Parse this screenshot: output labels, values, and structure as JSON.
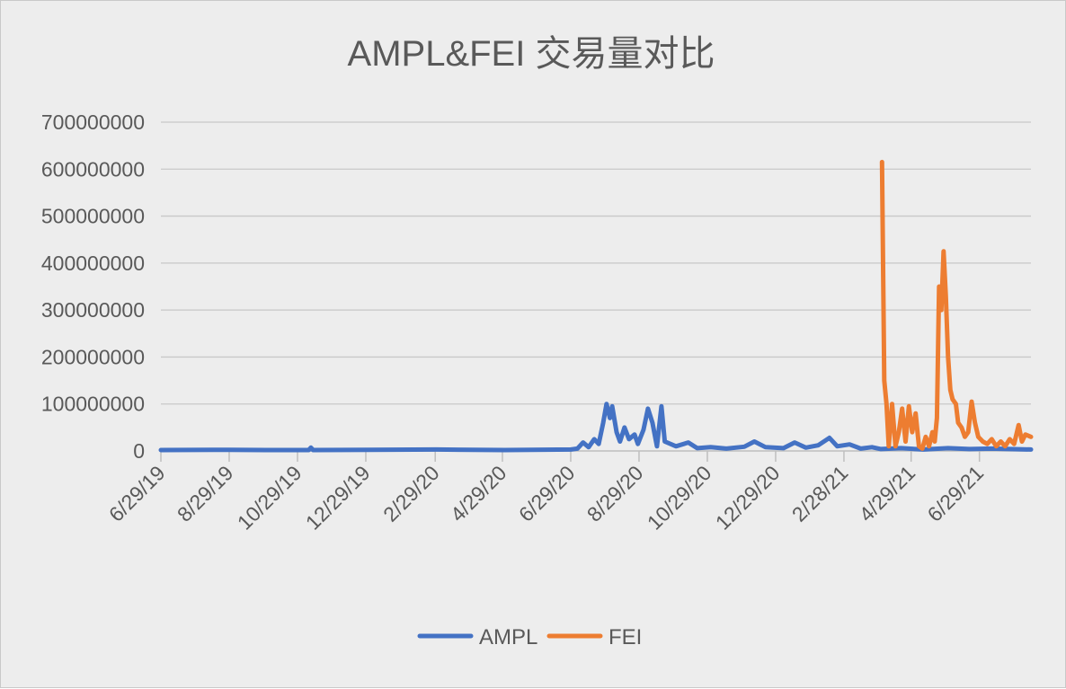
{
  "chart_data": {
    "type": "line",
    "title": "AMPL&FEI 交易量对比",
    "x_tick_labels": [
      "6/29/19",
      "8/29/19",
      "10/29/19",
      "12/29/19",
      "2/29/20",
      "4/29/20",
      "6/29/20",
      "8/29/20",
      "10/29/20",
      "12/29/20",
      "2/28/21",
      "4/29/21",
      "6/29/21"
    ],
    "x_range": [
      "2019-06-29",
      "2021-08-14"
    ],
    "y_ticks": [
      0,
      100000000,
      200000000,
      300000000,
      400000000,
      500000000,
      600000000,
      700000000
    ],
    "y_tick_labels": [
      "0",
      "100000000",
      "200000000",
      "300000000",
      "400000000",
      "500000000",
      "600000000",
      "700000000"
    ],
    "ylim": [
      0,
      700000000
    ],
    "grid": true,
    "legend_position": "bottom",
    "series": [
      {
        "name": "AMPL",
        "color": "#4472c4",
        "points": [
          [
            "2019-06-29",
            2000000
          ],
          [
            "2019-08-15",
            2500000
          ],
          [
            "2019-10-01",
            2000000
          ],
          [
            "2019-11-08",
            2000000
          ],
          [
            "2019-11-10",
            7000000
          ],
          [
            "2019-11-12",
            2000000
          ],
          [
            "2020-01-01",
            2500000
          ],
          [
            "2020-03-01",
            3000000
          ],
          [
            "2020-05-01",
            2000000
          ],
          [
            "2020-06-29",
            3000000
          ],
          [
            "2020-07-05",
            5000000
          ],
          [
            "2020-07-10",
            18000000
          ],
          [
            "2020-07-15",
            8000000
          ],
          [
            "2020-07-20",
            25000000
          ],
          [
            "2020-07-24",
            15000000
          ],
          [
            "2020-07-28",
            60000000
          ],
          [
            "2020-07-31",
            100000000
          ],
          [
            "2020-08-03",
            70000000
          ],
          [
            "2020-08-05",
            95000000
          ],
          [
            "2020-08-09",
            40000000
          ],
          [
            "2020-08-12",
            20000000
          ],
          [
            "2020-08-16",
            50000000
          ],
          [
            "2020-08-20",
            25000000
          ],
          [
            "2020-08-25",
            35000000
          ],
          [
            "2020-08-28",
            15000000
          ],
          [
            "2020-09-02",
            45000000
          ],
          [
            "2020-09-06",
            90000000
          ],
          [
            "2020-09-10",
            60000000
          ],
          [
            "2020-09-14",
            10000000
          ],
          [
            "2020-09-18",
            95000000
          ],
          [
            "2020-09-21",
            20000000
          ],
          [
            "2020-10-01",
            10000000
          ],
          [
            "2020-10-12",
            18000000
          ],
          [
            "2020-10-20",
            6000000
          ],
          [
            "2020-11-01",
            8000000
          ],
          [
            "2020-11-15",
            5000000
          ],
          [
            "2020-12-01",
            9000000
          ],
          [
            "2020-12-10",
            20000000
          ],
          [
            "2020-12-20",
            8000000
          ],
          [
            "2021-01-05",
            6000000
          ],
          [
            "2021-01-15",
            18000000
          ],
          [
            "2021-01-25",
            7000000
          ],
          [
            "2021-02-05",
            12000000
          ],
          [
            "2021-02-15",
            28000000
          ],
          [
            "2021-02-22",
            10000000
          ],
          [
            "2021-03-05",
            14000000
          ],
          [
            "2021-03-15",
            5000000
          ],
          [
            "2021-03-25",
            8000000
          ],
          [
            "2021-04-02",
            4000000
          ],
          [
            "2021-04-20",
            6000000
          ],
          [
            "2021-05-10",
            3000000
          ],
          [
            "2021-06-01",
            6000000
          ],
          [
            "2021-06-20",
            4000000
          ],
          [
            "2021-07-10",
            5000000
          ],
          [
            "2021-08-14",
            3000000
          ]
        ]
      },
      {
        "name": "FEI",
        "color": "#ed7d31",
        "points": [
          [
            "2021-04-03",
            615000000
          ],
          [
            "2021-04-05",
            150000000
          ],
          [
            "2021-04-07",
            100000000
          ],
          [
            "2021-04-09",
            10000000
          ],
          [
            "2021-04-12",
            100000000
          ],
          [
            "2021-04-15",
            10000000
          ],
          [
            "2021-04-18",
            40000000
          ],
          [
            "2021-04-21",
            90000000
          ],
          [
            "2021-04-24",
            20000000
          ],
          [
            "2021-04-27",
            95000000
          ],
          [
            "2021-04-30",
            40000000
          ],
          [
            "2021-05-03",
            80000000
          ],
          [
            "2021-05-06",
            10000000
          ],
          [
            "2021-05-09",
            5000000
          ],
          [
            "2021-05-12",
            30000000
          ],
          [
            "2021-05-15",
            10000000
          ],
          [
            "2021-05-18",
            40000000
          ],
          [
            "2021-05-20",
            20000000
          ],
          [
            "2021-05-22",
            70000000
          ],
          [
            "2021-05-24",
            350000000
          ],
          [
            "2021-05-26",
            300000000
          ],
          [
            "2021-05-28",
            425000000
          ],
          [
            "2021-05-30",
            330000000
          ],
          [
            "2021-06-01",
            200000000
          ],
          [
            "2021-06-03",
            130000000
          ],
          [
            "2021-06-05",
            110000000
          ],
          [
            "2021-06-08",
            100000000
          ],
          [
            "2021-06-10",
            60000000
          ],
          [
            "2021-06-13",
            50000000
          ],
          [
            "2021-06-16",
            30000000
          ],
          [
            "2021-06-19",
            40000000
          ],
          [
            "2021-06-22",
            105000000
          ],
          [
            "2021-06-25",
            60000000
          ],
          [
            "2021-06-28",
            30000000
          ],
          [
            "2021-07-02",
            20000000
          ],
          [
            "2021-07-06",
            15000000
          ],
          [
            "2021-07-10",
            25000000
          ],
          [
            "2021-07-14",
            10000000
          ],
          [
            "2021-07-18",
            20000000
          ],
          [
            "2021-07-22",
            10000000
          ],
          [
            "2021-07-26",
            25000000
          ],
          [
            "2021-07-30",
            15000000
          ],
          [
            "2021-08-03",
            55000000
          ],
          [
            "2021-08-06",
            20000000
          ],
          [
            "2021-08-09",
            35000000
          ],
          [
            "2021-08-14",
            30000000
          ]
        ]
      }
    ]
  }
}
